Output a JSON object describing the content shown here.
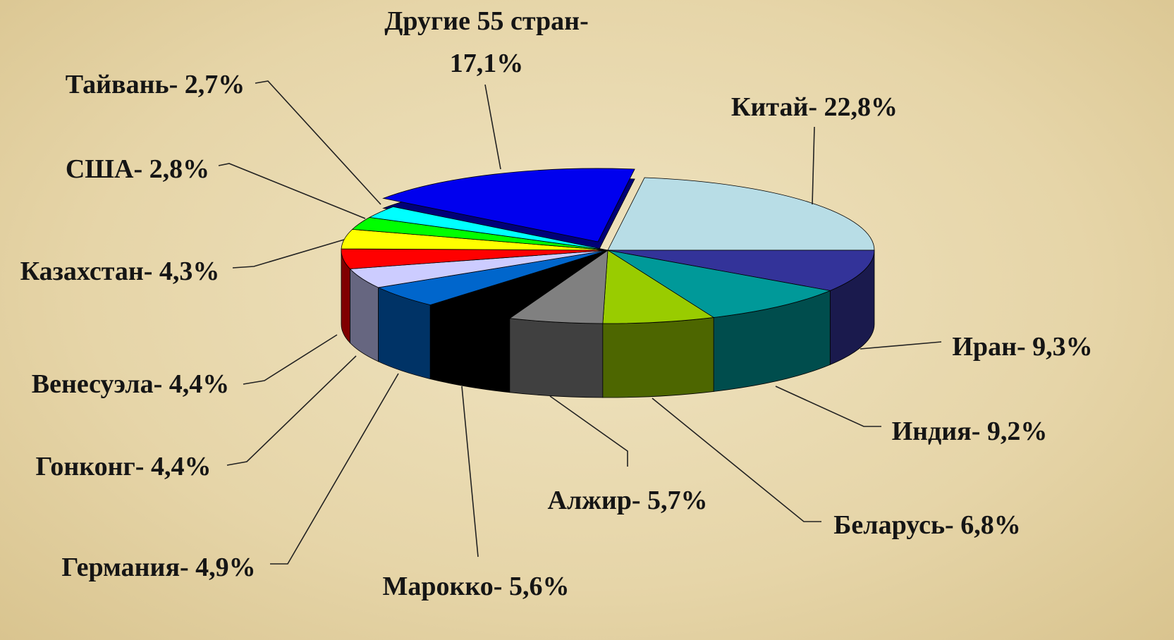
{
  "chart_data": {
    "type": "pie",
    "values": [
      22.8,
      9.3,
      9.2,
      6.8,
      5.7,
      5.6,
      4.9,
      4.4,
      4.4,
      4.3,
      2.8,
      2.7,
      17.1
    ],
    "value_labels": [
      "Китай- 22,8%",
      "Иран- 9,3%",
      "Индия- 9,2%",
      "Беларусь- 6,8%",
      "Алжир- 5,7%",
      "Марокко- 5,6%",
      "Германия- 4,9%",
      "Гонконг- 4,4%",
      "Венесуэла- 4,4%",
      "Казахстан- 4,3%",
      "США- 2,8%",
      "Тайвань- 2,7%",
      "Другие 55 стран-\n17,1%"
    ],
    "colors": [
      "#b8dde6",
      "#333399",
      "#009999",
      "#99cc00",
      "#808080",
      "#000000",
      "#0066cc",
      "#ccccff",
      "#ff0000",
      "#ffff00",
      "#00ff00",
      "#00ffff",
      "#0000ee"
    ]
  }
}
